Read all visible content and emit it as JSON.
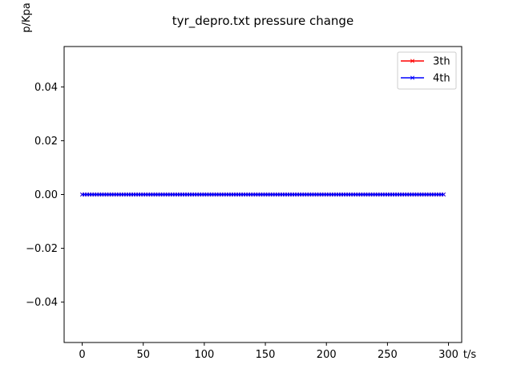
{
  "chart_data": {
    "type": "line",
    "title": "tyr_depro.txt pressure change",
    "xlabel": "t/s",
    "ylabel": "p/Kpa",
    "xlim": [
      -14.8,
      310.8
    ],
    "ylim": [
      -0.055,
      0.055
    ],
    "xticks": [
      0,
      50,
      100,
      150,
      200,
      250,
      300
    ],
    "yticks": [
      -0.04,
      -0.02,
      0.0,
      0.02,
      0.04
    ],
    "ytick_labels": [
      "−0.04",
      "−0.02",
      "0.00",
      "0.02",
      "0.04"
    ],
    "legend_position": "upper right",
    "grid": false,
    "x": {
      "start": 0,
      "end": 296,
      "step": 2
    },
    "series": [
      {
        "name": "3th",
        "color": "#ff0000",
        "marker": "x",
        "value": 0
      },
      {
        "name": "4th",
        "color": "#0000ff",
        "marker": "x",
        "value": 0
      }
    ]
  }
}
